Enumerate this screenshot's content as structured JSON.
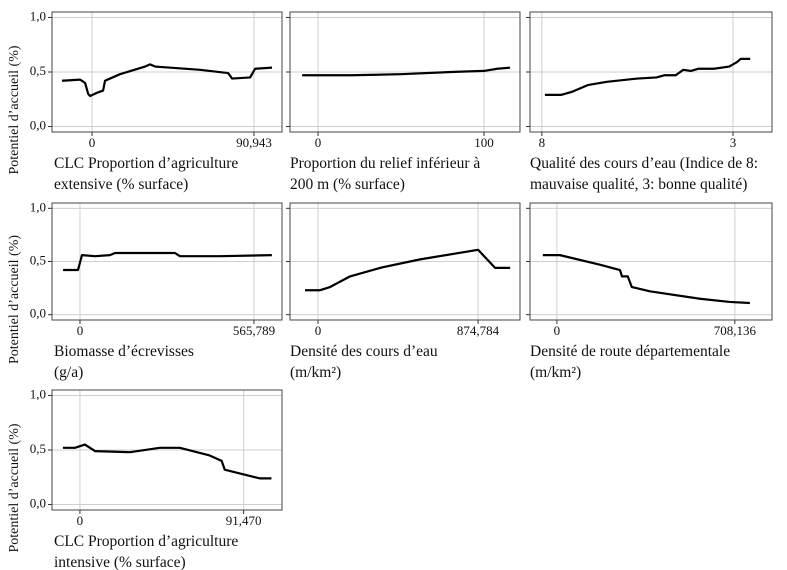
{
  "chart_data": [
    {
      "type": "line",
      "y_label": "Potentiel d’accueil (%)",
      "x_label": [
        "CLC Proportion d’agriculture",
        "extensive (% surface)"
      ],
      "x": [
        -16.9,
        -6.7,
        -3.9,
        -2.2,
        -1.1,
        2.8,
        6.2,
        7.3,
        15.7,
        29.8,
        32.6,
        35.4,
        60.7,
        76.4,
        78.7,
        88.8,
        91.6,
        101.1
      ],
      "values": [
        0.42,
        0.43,
        0.4,
        0.3,
        0.28,
        0.31,
        0.33,
        0.42,
        0.48,
        0.55,
        0.57,
        0.55,
        0.52,
        0.49,
        0.44,
        0.45,
        0.53,
        0.54
      ],
      "color": "#000000",
      "xlim": [
        -22.5,
        106.7
      ],
      "ylim": [
        -0.05,
        1.05
      ],
      "xticks": [
        0,
        {
          "value": 90.943,
          "label": "90,943"
        }
      ],
      "yticks": [
        {
          "value": 0,
          "label": "0,0"
        },
        {
          "value": 0.5,
          "label": "0,5"
        },
        {
          "value": 1,
          "label": "1,0"
        }
      ],
      "show_ytick_labels": true,
      "grid": true
    },
    {
      "type": "line",
      "x_label": [
        "Proportion du relief inférieur à",
        "200 m (% surface)"
      ],
      "x": [
        -9.6,
        20,
        50,
        80,
        100,
        108,
        115.7
      ],
      "values": [
        0.47,
        0.47,
        0.48,
        0.5,
        0.51,
        0.53,
        0.54
      ],
      "color": "#000000",
      "xlim": [
        -16.9,
        121.7
      ],
      "ylim": [
        -0.05,
        1.05
      ],
      "xticks": [
        0,
        100
      ],
      "yticks": [
        0,
        0.5,
        1
      ],
      "show_ytick_labels": false,
      "grid": true
    },
    {
      "type": "line",
      "x_label": [
        "Qualité des cours d’eau (Indice de 8:",
        "mauvaise qualité, 3: bonne qualité)"
      ],
      "x": [
        7.92,
        7.5,
        7.2,
        6.8,
        6.3,
        5.5,
        5,
        4.8,
        4.5,
        4.3,
        4.1,
        3.9,
        3.5,
        3.1,
        2.9,
        2.8,
        2.55
      ],
      "values": [
        0.29,
        0.29,
        0.32,
        0.38,
        0.41,
        0.44,
        0.45,
        0.47,
        0.47,
        0.52,
        0.51,
        0.53,
        0.53,
        0.55,
        0.59,
        0.62,
        0.62
      ],
      "color": "#000000",
      "xlim": [
        8.31,
        1.98
      ],
      "ylim": [
        -0.05,
        1.05
      ],
      "xticks": [
        8,
        3
      ],
      "yticks": [
        0,
        0.5,
        1
      ],
      "show_ytick_labels": false,
      "grid": true
    },
    {
      "type": "line",
      "y_label": "Potentiel d’accueil (%)",
      "x_label": [
        "Biomasse d’écrevisses",
        "(g/a)"
      ],
      "x": [
        -55,
        -6.5,
        6.5,
        49,
        97.6,
        114,
        309,
        325,
        455,
        624
      ],
      "values": [
        0.42,
        0.42,
        0.56,
        0.55,
        0.56,
        0.58,
        0.58,
        0.55,
        0.55,
        0.56
      ],
      "color": "#000000",
      "xlim": [
        -91,
        657
      ],
      "ylim": [
        -0.05,
        1.05
      ],
      "xticks": [
        0,
        {
          "value": 565.789,
          "label": "565,789"
        }
      ],
      "yticks": [
        {
          "value": 0,
          "label": "0,0"
        },
        {
          "value": 0.5,
          "label": "0,5"
        },
        {
          "value": 1,
          "label": "1,0"
        }
      ],
      "show_ytick_labels": true,
      "grid": true
    },
    {
      "type": "line",
      "x_label": [
        "Densité des cours d’eau",
        "(m/km²)"
      ],
      "x": [
        -71,
        11,
        66,
        175,
        339,
        558,
        875,
        968,
        1050
      ],
      "values": [
        0.23,
        0.23,
        0.26,
        0.36,
        0.44,
        0.52,
        0.61,
        0.44,
        0.44
      ],
      "color": "#000000",
      "xlim": [
        -153,
        1104
      ],
      "ylim": [
        -0.05,
        1.05
      ],
      "xticks": [
        0,
        {
          "value": 874.784,
          "label": "874,784"
        }
      ],
      "yticks": [
        0,
        0.5,
        1
      ],
      "show_ytick_labels": false,
      "grid": true
    },
    {
      "type": "line",
      "x_label": [
        "Densité de route départementale",
        "(m/km²)"
      ],
      "x": [
        -56,
        12,
        171,
        251,
        259,
        282,
        298,
        370,
        569,
        688,
        768
      ],
      "values": [
        0.56,
        0.56,
        0.47,
        0.42,
        0.36,
        0.36,
        0.26,
        0.22,
        0.15,
        0.12,
        0.11
      ],
      "color": "#000000",
      "xlim": [
        -107,
        856
      ],
      "ylim": [
        -0.05,
        1.05
      ],
      "xticks": [
        0,
        {
          "value": 708.136,
          "label": "708,136"
        }
      ],
      "yticks": [
        0,
        0.5,
        1
      ],
      "show_ytick_labels": false,
      "grid": true
    },
    {
      "type": "line",
      "y_label": "Potentiel d’accueil (%)",
      "x_label": [
        "CLC Proportion d’agriculture",
        "intensive (% surface)"
      ],
      "x": [
        -9.5,
        -2.8,
        2.8,
        8.4,
        28,
        44.6,
        55.8,
        72.5,
        79.2,
        80.9,
        100.4,
        107
      ],
      "values": [
        0.52,
        0.52,
        0.55,
        0.49,
        0.48,
        0.52,
        0.52,
        0.45,
        0.4,
        0.32,
        0.24,
        0.24
      ],
      "color": "#000000",
      "xlim": [
        -15.6,
        112.9
      ],
      "ylim": [
        -0.05,
        1.05
      ],
      "xticks": [
        0,
        {
          "value": 91.47,
          "label": "91,470"
        }
      ],
      "yticks": [
        {
          "value": 0,
          "label": "0,0"
        },
        {
          "value": 0.5,
          "label": "0,5"
        },
        {
          "value": 1,
          "label": "1,0"
        }
      ],
      "show_ytick_labels": true,
      "grid": true
    }
  ]
}
